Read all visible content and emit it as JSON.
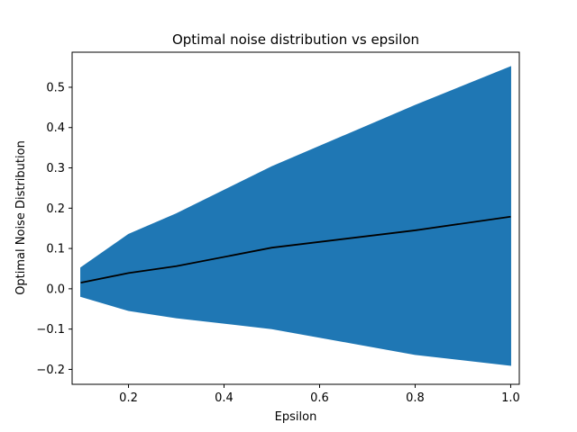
{
  "chart_data": {
    "type": "area",
    "title": "Optimal noise distribution vs epsilon",
    "xlabel": "Epsilon",
    "ylabel": "Optimal Noise Distribution",
    "xlim": [
      0.082,
      1.018
    ],
    "ylim": [
      -0.237,
      0.587
    ],
    "xticks": [
      0.2,
      0.4,
      0.6,
      0.8,
      1.0
    ],
    "xtick_labels": [
      "0.2",
      "0.4",
      "0.6",
      "0.8",
      "1.0"
    ],
    "yticks": [
      -0.2,
      -0.1,
      0.0,
      0.1,
      0.2,
      0.3,
      0.4,
      0.5
    ],
    "ytick_labels": [
      "−0.2",
      "−0.1",
      "0.0",
      "0.1",
      "0.2",
      "0.3",
      "0.4",
      "0.5"
    ],
    "grid": false,
    "x": [
      0.1,
      0.2,
      0.3,
      0.5,
      0.8,
      1.0
    ],
    "series": [
      {
        "role": "line",
        "values": [
          0.015,
          0.039,
          0.056,
          0.102,
          0.145,
          0.179
        ],
        "color": "#000000"
      },
      {
        "role": "band-upper",
        "values": [
          0.052,
          0.135,
          0.186,
          0.303,
          0.455,
          0.551
        ],
        "color": "#1f77b4"
      },
      {
        "role": "band-lower",
        "values": [
          -0.019,
          -0.054,
          -0.072,
          -0.099,
          -0.163,
          -0.19
        ],
        "color": "#1f77b4"
      }
    ]
  }
}
